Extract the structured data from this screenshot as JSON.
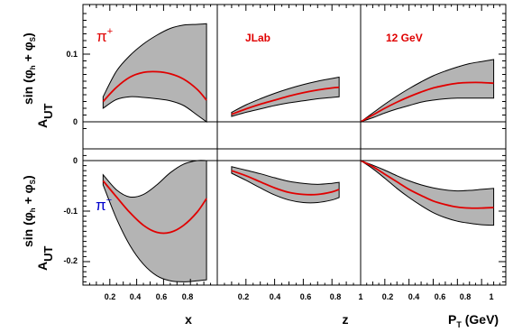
{
  "chart_data": {
    "type": "area",
    "labels": {
      "ylabel_main": "A",
      "ylabel_sub": "UT",
      "ylabel_sup": "sin (φ",
      "ylabel_sup_h": "h",
      "ylabel_sup_plus": " + φ",
      "ylabel_sup_s": "S",
      "ylabel_sup_close": ")",
      "xlabel_x": "x",
      "xlabel_z": "z",
      "xlabel_pt": "P",
      "xlabel_pt_sub": "T",
      "xlabel_pt_unit": " (GeV)",
      "pi_plus": "π",
      "pi_plus_sup": "+",
      "pi_minus": "π",
      "pi_minus_sup": "−",
      "jlab": "JLab",
      "energy": "12 GeV"
    },
    "colors": {
      "curve": "#e00000",
      "band": "#b4b4b4",
      "pi_plus": "#e00000",
      "pi_minus": "#0000cc",
      "annotation": "#e00000"
    },
    "x_ticks": {
      "x": [
        "0.2",
        "0.4",
        "0.6",
        "0.8"
      ],
      "z": [
        "0.2",
        "0.4",
        "0.6",
        "0.8"
      ],
      "pt": [
        "1",
        "0.2",
        "0.4",
        "0.6",
        "0.8",
        "1"
      ]
    },
    "y_ticks": {
      "top": [
        "0.1",
        "0"
      ],
      "bottom": [
        "0",
        "-0.1",
        "-0.2"
      ]
    },
    "panels": [
      {
        "id": "pip-x",
        "xvar": "x",
        "row": "top",
        "x": [
          0.15,
          0.25,
          0.35,
          0.45,
          0.55,
          0.65,
          0.75,
          0.85,
          0.92
        ],
        "central": [
          0.03,
          0.051,
          0.066,
          0.073,
          0.074,
          0.071,
          0.063,
          0.048,
          0.032
        ],
        "upper": [
          0.037,
          0.075,
          0.098,
          0.115,
          0.128,
          0.138,
          0.143,
          0.144,
          0.145
        ],
        "lower": [
          0.02,
          0.033,
          0.037,
          0.036,
          0.034,
          0.031,
          0.024,
          0.01,
          0.0
        ]
      },
      {
        "id": "pip-z",
        "xvar": "z",
        "row": "top",
        "x": [
          0.1,
          0.2,
          0.3,
          0.4,
          0.5,
          0.6,
          0.7,
          0.8,
          0.85
        ],
        "central": [
          0.011,
          0.019,
          0.026,
          0.032,
          0.038,
          0.043,
          0.047,
          0.05,
          0.051
        ],
        "upper": [
          0.014,
          0.025,
          0.034,
          0.042,
          0.049,
          0.055,
          0.06,
          0.064,
          0.066
        ],
        "lower": [
          0.008,
          0.014,
          0.019,
          0.024,
          0.028,
          0.031,
          0.034,
          0.036,
          0.037
        ]
      },
      {
        "id": "pip-pt",
        "xvar": "P_T",
        "row": "top",
        "x": [
          0.0,
          0.1,
          0.2,
          0.3,
          0.4,
          0.5,
          0.6,
          0.7,
          0.8,
          0.9,
          1.0,
          1.1
        ],
        "central": [
          0.0,
          0.01,
          0.02,
          0.029,
          0.037,
          0.044,
          0.05,
          0.054,
          0.057,
          0.058,
          0.058,
          0.057
        ],
        "upper": [
          0.0,
          0.013,
          0.026,
          0.038,
          0.049,
          0.059,
          0.068,
          0.075,
          0.081,
          0.086,
          0.089,
          0.092
        ],
        "lower": [
          0.0,
          0.006,
          0.013,
          0.019,
          0.024,
          0.029,
          0.032,
          0.034,
          0.035,
          0.035,
          0.035,
          0.035
        ]
      },
      {
        "id": "pim-x",
        "xvar": "x",
        "row": "bottom",
        "x": [
          0.15,
          0.25,
          0.35,
          0.45,
          0.55,
          0.65,
          0.75,
          0.85,
          0.92
        ],
        "central": [
          -0.04,
          -0.072,
          -0.103,
          -0.128,
          -0.142,
          -0.142,
          -0.128,
          -0.102,
          -0.075
        ],
        "upper": [
          -0.028,
          -0.058,
          -0.072,
          -0.067,
          -0.048,
          -0.024,
          -0.007,
          0.0,
          0.0
        ],
        "lower": [
          -0.048,
          -0.115,
          -0.168,
          -0.205,
          -0.228,
          -0.238,
          -0.24,
          -0.238,
          -0.236
        ]
      },
      {
        "id": "pim-z",
        "xvar": "z",
        "row": "bottom",
        "x": [
          0.1,
          0.2,
          0.3,
          0.4,
          0.5,
          0.6,
          0.7,
          0.8,
          0.85
        ],
        "central": [
          -0.02,
          -0.03,
          -0.042,
          -0.054,
          -0.063,
          -0.067,
          -0.067,
          -0.062,
          -0.057
        ],
        "upper": [
          -0.012,
          -0.019,
          -0.026,
          -0.034,
          -0.041,
          -0.045,
          -0.047,
          -0.045,
          -0.043
        ],
        "lower": [
          -0.025,
          -0.039,
          -0.054,
          -0.068,
          -0.078,
          -0.083,
          -0.083,
          -0.078,
          -0.073
        ]
      },
      {
        "id": "pim-pt",
        "xvar": "P_T",
        "row": "bottom",
        "x": [
          0.0,
          0.1,
          0.2,
          0.3,
          0.4,
          0.5,
          0.6,
          0.7,
          0.8,
          0.9,
          1.0,
          1.1
        ],
        "central": [
          0.0,
          -0.012,
          -0.027,
          -0.042,
          -0.057,
          -0.069,
          -0.08,
          -0.087,
          -0.092,
          -0.094,
          -0.094,
          -0.093
        ],
        "upper": [
          0.0,
          -0.009,
          -0.019,
          -0.03,
          -0.04,
          -0.048,
          -0.054,
          -0.058,
          -0.06,
          -0.059,
          -0.057,
          -0.055
        ],
        "lower": [
          0.0,
          -0.016,
          -0.035,
          -0.055,
          -0.073,
          -0.089,
          -0.103,
          -0.113,
          -0.12,
          -0.124,
          -0.127,
          -0.128
        ]
      }
    ]
  }
}
